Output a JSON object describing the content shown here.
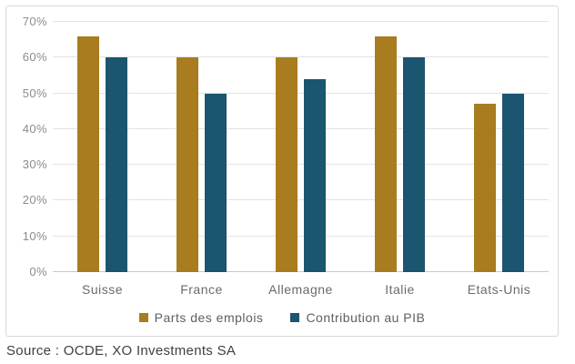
{
  "chart_data": {
    "type": "bar",
    "categories": [
      "Suisse",
      "France",
      "Allemagne",
      "Italie",
      "Etats-Unis"
    ],
    "series": [
      {
        "name": "Parts des emplois",
        "color": "#a87c1f",
        "values": [
          66,
          60,
          60,
          66,
          47
        ]
      },
      {
        "name": "Contribution au PIB",
        "color": "#1b5570",
        "values": [
          60,
          50,
          54,
          60,
          50
        ]
      }
    ],
    "title": "",
    "xlabel": "",
    "ylabel": "",
    "ylim": [
      0,
      70
    ],
    "ytick_values": [
      0,
      10,
      20,
      30,
      40,
      50,
      60,
      70
    ],
    "ytick_labels": [
      "0%",
      "10%",
      "20%",
      "30%",
      "40%",
      "50%",
      "60%",
      "70%"
    ],
    "grid": true,
    "legend_position": "bottom"
  },
  "source": {
    "label": "Source : OCDE, XO Investments SA"
  },
  "colors": {
    "gridline": "#e3e3e3",
    "axis_line": "#c9c9c9",
    "card_border": "#d8d8d8",
    "tick_text": "#8c8c8c",
    "category_text": "#6b6b6b",
    "legend_text": "#5f5f5f",
    "source_text": "#3f3f3f"
  }
}
